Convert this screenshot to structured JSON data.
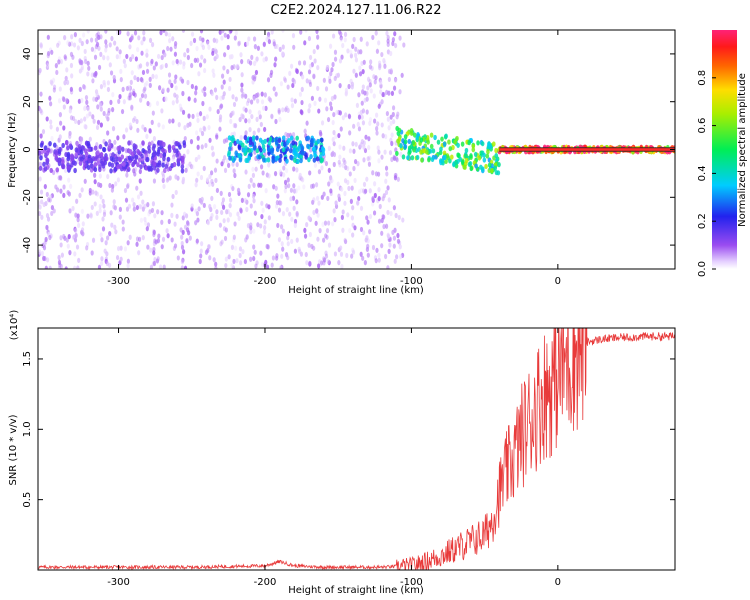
{
  "title": "C2E2.2024.127.11.06.R22",
  "colors": {
    "snr_line": "#e83a3a",
    "frame": "#000000",
    "background": "#ffffff",
    "spectrogram_base": "#a35cf0",
    "spectrogram_line": "#ff2a2a"
  },
  "chart_data": [
    {
      "type": "heatmap",
      "title": "C2E2.2024.127.11.06.R22",
      "xlabel": "Height of straight line (km)",
      "ylabel": "Frequency (Hz)",
      "xlim": [
        -355,
        80
      ],
      "ylim": [
        -50,
        50
      ],
      "x_ticks": [
        -300,
        -200,
        -100,
        0
      ],
      "x_tick_labels": [
        "-300",
        "-200",
        "-100",
        "0"
      ],
      "y_ticks": [
        -40,
        -20,
        0,
        20,
        40
      ],
      "y_tick_labels": [
        "-40",
        "-20",
        "0",
        "20",
        "40"
      ],
      "colorbar": {
        "label": "Normalized spectral amplitude",
        "range": [
          0,
          1
        ],
        "ticks": [
          0.0,
          0.2,
          0.4,
          0.6,
          0.8
        ],
        "tick_labels": [
          "0.0",
          "0.2",
          "0.4",
          "0.6",
          "0.8"
        ],
        "colormap": "rainbow (white, purple, blue, cyan, green, yellow, red, magenta)"
      },
      "features": [
        {
          "x_range": [
            -355,
            -105
          ],
          "freq_range": [
            -50,
            50
          ],
          "amplitude": 0.05,
          "description": "diffuse noise"
        },
        {
          "x_range": [
            -355,
            -255
          ],
          "freq_center": -3,
          "freq_halfwidth": 6,
          "amplitude": 0.15
        },
        {
          "x_range": [
            -225,
            -160
          ],
          "freq_center": 0,
          "freq_halfwidth": 5,
          "amplitude": 0.35
        },
        {
          "x_range": [
            -110,
            -40
          ],
          "freq_center_start": 3,
          "freq_center_end": -4,
          "amplitude": 0.55
        },
        {
          "x_range": [
            -40,
            80
          ],
          "freq_center": 0,
          "freq_halfwidth": 1,
          "amplitude": 0.95
        }
      ]
    },
    {
      "type": "line",
      "xlabel": "Height of straight line (km)",
      "ylabel": "SNR (10 * v/v)",
      "y_multiplier": "(x10⁴)",
      "xlim": [
        -355,
        80
      ],
      "ylim": [
        0,
        1.72
      ],
      "x_ticks": [
        -300,
        -200,
        -100,
        0
      ],
      "x_tick_labels": [
        "-300",
        "-200",
        "-100",
        "0"
      ],
      "y_ticks": [
        0.5,
        1.0,
        1.5
      ],
      "y_tick_labels": [
        "0.5",
        "1.0",
        "1.5"
      ],
      "series": [
        {
          "x": [
            -355,
            -300,
            -250,
            -200,
            -190,
            -180,
            -160,
            -120,
            -100,
            -90,
            -80,
            -70,
            -60,
            -50,
            -45,
            -40,
            -35,
            -30,
            -25,
            -20,
            -15,
            -10,
            -5,
            0,
            10,
            20,
            30,
            40,
            60,
            80
          ],
          "y": [
            0.02,
            0.02,
            0.02,
            0.03,
            0.06,
            0.03,
            0.02,
            0.02,
            0.03,
            0.06,
            0.1,
            0.15,
            0.2,
            0.25,
            0.35,
            0.55,
            0.7,
            0.8,
            0.95,
            1.05,
            1.15,
            1.25,
            1.3,
            1.4,
            1.55,
            1.62,
            1.64,
            1.65,
            1.66,
            1.66
          ]
        }
      ]
    }
  ]
}
